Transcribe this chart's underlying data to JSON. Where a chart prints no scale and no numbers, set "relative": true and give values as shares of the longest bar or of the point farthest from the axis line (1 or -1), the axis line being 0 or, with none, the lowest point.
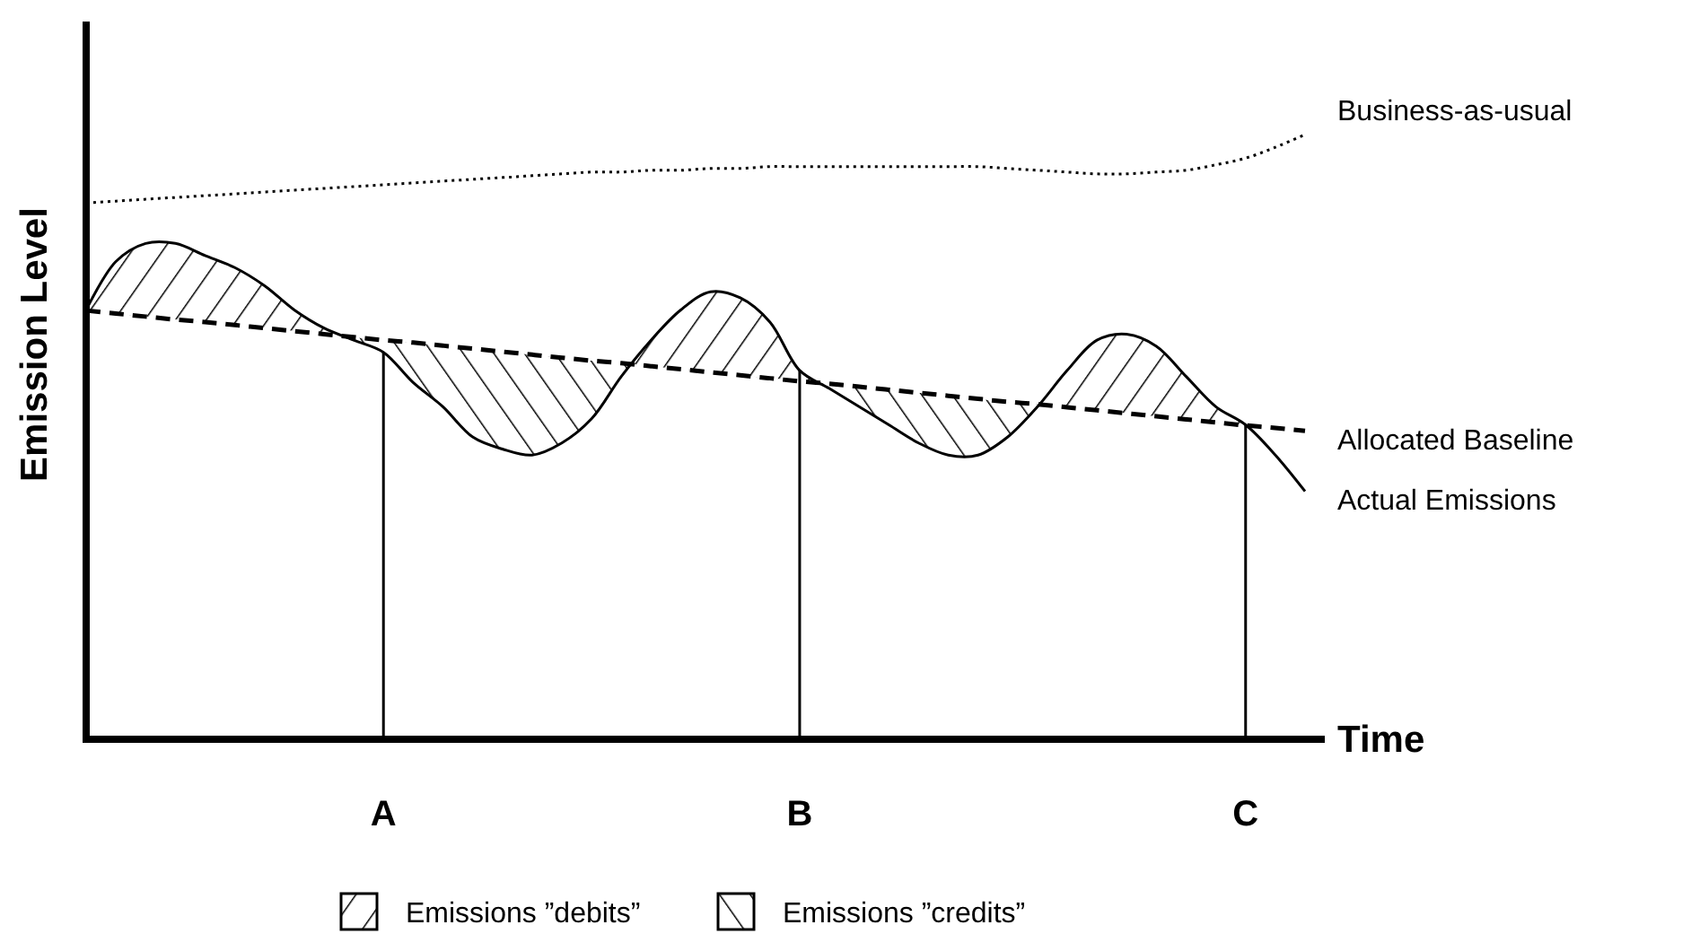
{
  "chart_data": {
    "type": "line",
    "relative": true,
    "xlabel": "Time",
    "ylabel": "Emission Level",
    "legend": "right",
    "tick_labels": "x",
    "annotations": [
      "Emissions ”debits”",
      "Emissions ”credits”"
    ],
    "categories": [
      null,
      null,
      null,
      null,
      null,
      null,
      null,
      null,
      null,
      null,
      "A",
      null,
      null,
      null,
      null,
      null,
      null,
      null,
      null,
      null,
      null,
      null,
      null,
      null,
      "B",
      null,
      null,
      null,
      null,
      null,
      null,
      null,
      null,
      null,
      null,
      null,
      null,
      null,
      null,
      "C",
      null,
      null
    ],
    "ref_lines": [
      {
        "axis": "x",
        "value": "A",
        "color": "#000000"
      },
      {
        "axis": "x",
        "value": "B",
        "color": "#000000"
      },
      {
        "axis": "x",
        "value": "C",
        "color": "#000000"
      }
    ],
    "series": [
      {
        "name": "Business-as-usual",
        "color": "#000000",
        "line_style": "dotted",
        "values": [
          0.887,
          0.89,
          0.893,
          0.896,
          0.899,
          0.902,
          0.905,
          0.908,
          0.911,
          0.914,
          0.917,
          0.92,
          0.923,
          0.926,
          0.929,
          0.932,
          0.935,
          0.938,
          0.938,
          0.941,
          0.941,
          0.944,
          0.944,
          0.947,
          0.947,
          0.947,
          0.947,
          0.947,
          0.947,
          0.947,
          0.947,
          0.944,
          0.941,
          0.938,
          0.935,
          0.935,
          0.938,
          0.941,
          0.95,
          0.961,
          0.979,
          1
        ]
      },
      {
        "name": "Allocated Baseline",
        "color": "#000000",
        "line_style": "dashed",
        "values": [
          0.709,
          0.704,
          0.699,
          0.694,
          0.69,
          0.685,
          0.68,
          0.675,
          0.67,
          0.665,
          0.66,
          0.656,
          0.651,
          0.646,
          0.641,
          0.636,
          0.631,
          0.626,
          0.622,
          0.617,
          0.612,
          0.607,
          0.602,
          0.597,
          0.592,
          0.588,
          0.583,
          0.578,
          0.573,
          0.568,
          0.563,
          0.558,
          0.554,
          0.549,
          0.544,
          0.539,
          0.534,
          0.529,
          0.524,
          0.519,
          0.515,
          0.51
        ]
      },
      {
        "name": "Actual Emissions",
        "color": "#000000",
        "line_style": "solid",
        "values": [
          0.71,
          0.79,
          0.82,
          0.82,
          0.8,
          0.78,
          0.75,
          0.71,
          0.68,
          0.66,
          0.64,
          0.59,
          0.55,
          0.5,
          0.48,
          0.47,
          0.49,
          0.53,
          0.6,
          0.66,
          0.71,
          0.74,
          0.73,
          0.69,
          0.61,
          0.58,
          0.55,
          0.52,
          0.49,
          0.47,
          0.47,
          0.5,
          0.55,
          0.61,
          0.66,
          0.67,
          0.65,
          0.6,
          0.55,
          0.52,
          0.47,
          0.41
        ]
      }
    ]
  }
}
